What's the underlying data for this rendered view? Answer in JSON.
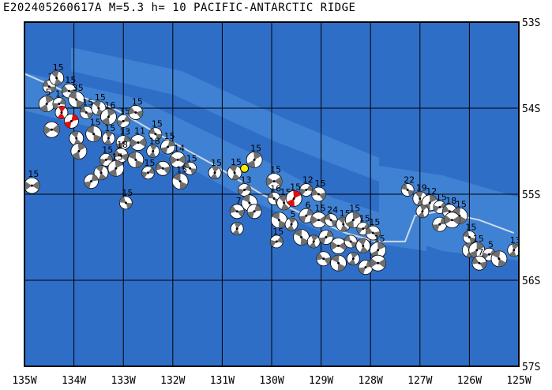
{
  "title": "E202405260617A M=5.3 h= 10 PACIFIC-ANTARCTIC RIDGE",
  "map": {
    "lon_range": [
      -135,
      -125
    ],
    "lat_range": [
      -57,
      -53
    ],
    "lon_labels": [
      "135W",
      "134W",
      "133W",
      "132W",
      "131W",
      "130W",
      "129W",
      "128W",
      "127W",
      "126W",
      "125W"
    ],
    "lat_labels": [
      "53S",
      "54S",
      "55S",
      "56S",
      "57S"
    ],
    "colors": {
      "ocean": "#2f6ec7",
      "ridge": "#3f82d4",
      "grid": "#000000",
      "plate_boundary": "#d0d8e8",
      "mechanism_fill": "#ffffff",
      "mechanism_dark": "#6f6f6f",
      "highlight_event": "#e01010",
      "epicenter": "#ffee00"
    },
    "epicenter": {
      "lon": -130.55,
      "lat": -54.7
    },
    "plate_boundary": [
      [
        -135,
        -53.6
      ],
      [
        -134.2,
        -53.8
      ],
      [
        -133.2,
        -54.0
      ],
      [
        -132.3,
        -54.3
      ],
      [
        -131.2,
        -54.65
      ],
      [
        -130.2,
        -55.0
      ],
      [
        -129.3,
        -55.25
      ],
      [
        -128.5,
        -55.45
      ],
      [
        -127.9,
        -55.55
      ],
      [
        -127.3,
        -55.55
      ],
      [
        -127.1,
        -55.25
      ],
      [
        -126.6,
        -55.2
      ],
      [
        -125.8,
        -55.3
      ],
      [
        -125.1,
        -55.45
      ]
    ],
    "events": [
      {
        "lon": -134.5,
        "lat": -53.75,
        "label": "2"
      },
      {
        "lon": -134.35,
        "lat": -53.65,
        "label": "15"
      },
      {
        "lon": -134.55,
        "lat": -53.95,
        "label": "5"
      },
      {
        "lon": -134.3,
        "lat": -53.95,
        "label": "15"
      },
      {
        "lon": -134.1,
        "lat": -53.8,
        "label": "15"
      },
      {
        "lon": -133.95,
        "lat": -53.9,
        "label": "35"
      },
      {
        "lon": -134.25,
        "lat": -54.05,
        "label": "",
        "highlight": true
      },
      {
        "lon": -134.05,
        "lat": -54.15,
        "label": "",
        "highlight": true
      },
      {
        "lon": -134.45,
        "lat": -54.25,
        "label": ""
      },
      {
        "lon": -133.75,
        "lat": -54.05,
        "label": "15"
      },
      {
        "lon": -133.5,
        "lat": -54.0,
        "label": "15"
      },
      {
        "lon": -133.3,
        "lat": -54.1,
        "label": "16"
      },
      {
        "lon": -133.0,
        "lat": -54.15,
        "label": "15"
      },
      {
        "lon": -132.75,
        "lat": -54.05,
        "label": "15"
      },
      {
        "lon": -133.6,
        "lat": -54.3,
        "label": "15"
      },
      {
        "lon": -133.3,
        "lat": -54.35,
        "label": "15"
      },
      {
        "lon": -133.0,
        "lat": -54.4,
        "label": "13"
      },
      {
        "lon": -132.7,
        "lat": -54.4,
        "label": "11"
      },
      {
        "lon": -132.35,
        "lat": -54.3,
        "label": "15"
      },
      {
        "lon": -133.95,
        "lat": -54.35,
        "label": ""
      },
      {
        "lon": -133.9,
        "lat": -54.5,
        "label": ""
      },
      {
        "lon": -133.35,
        "lat": -54.6,
        "label": "15"
      },
      {
        "lon": -133.05,
        "lat": -54.55,
        "label": "18"
      },
      {
        "lon": -132.75,
        "lat": -54.6,
        "label": ""
      },
      {
        "lon": -132.4,
        "lat": -54.5,
        "label": "18"
      },
      {
        "lon": -132.1,
        "lat": -54.45,
        "label": "15"
      },
      {
        "lon": -131.9,
        "lat": -54.6,
        "label": "14"
      },
      {
        "lon": -131.65,
        "lat": -54.7,
        "label": "15"
      },
      {
        "lon": -133.45,
        "lat": -54.75,
        "label": ""
      },
      {
        "lon": -133.15,
        "lat": -54.7,
        "label": "15"
      },
      {
        "lon": -132.5,
        "lat": -54.75,
        "label": "15"
      },
      {
        "lon": -132.2,
        "lat": -54.7,
        "label": ""
      },
      {
        "lon": -131.85,
        "lat": -54.85,
        "label": "15"
      },
      {
        "lon": -131.15,
        "lat": -54.75,
        "label": "15"
      },
      {
        "lon": -133.65,
        "lat": -54.85,
        "label": ""
      },
      {
        "lon": -134.85,
        "lat": -54.9,
        "label": "15"
      },
      {
        "lon": -132.95,
        "lat": -55.1,
        "label": "15"
      },
      {
        "lon": -130.75,
        "lat": -54.75,
        "label": "15"
      },
      {
        "lon": -130.35,
        "lat": -54.6,
        "label": "15"
      },
      {
        "lon": -130.55,
        "lat": -54.95,
        "label": "13"
      },
      {
        "lon": -130.7,
        "lat": -55.2,
        "label": "7"
      },
      {
        "lon": -130.45,
        "lat": -55.1,
        "label": ""
      },
      {
        "lon": -130.7,
        "lat": -55.4,
        "label": ""
      },
      {
        "lon": -130.35,
        "lat": -55.2,
        "label": ""
      },
      {
        "lon": -129.95,
        "lat": -54.85,
        "label": "15"
      },
      {
        "lon": -129.95,
        "lat": -55.05,
        "label": "16"
      },
      {
        "lon": -129.75,
        "lat": -55.1,
        "label": "15"
      },
      {
        "lon": -129.55,
        "lat": -55.05,
        "label": "15",
        "highlight": true
      },
      {
        "lon": -129.3,
        "lat": -54.95,
        "label": "12"
      },
      {
        "lon": -129.05,
        "lat": -55.0,
        "label": "15"
      },
      {
        "lon": -129.85,
        "lat": -55.3,
        "label": ""
      },
      {
        "lon": -129.6,
        "lat": -55.35,
        "label": "5"
      },
      {
        "lon": -129.3,
        "lat": -55.25,
        "label": "6"
      },
      {
        "lon": -129.05,
        "lat": -55.3,
        "label": "15"
      },
      {
        "lon": -128.8,
        "lat": -55.3,
        "label": "24"
      },
      {
        "lon": -128.55,
        "lat": -55.35,
        "label": "15"
      },
      {
        "lon": -128.35,
        "lat": -55.3,
        "label": "15"
      },
      {
        "lon": -128.15,
        "lat": -55.4,
        "label": "15"
      },
      {
        "lon": -127.95,
        "lat": -55.45,
        "label": "15"
      },
      {
        "lon": -129.4,
        "lat": -55.5,
        "label": ""
      },
      {
        "lon": -129.15,
        "lat": -55.55,
        "label": ""
      },
      {
        "lon": -128.9,
        "lat": -55.5,
        "label": ""
      },
      {
        "lon": -128.65,
        "lat": -55.6,
        "label": ""
      },
      {
        "lon": -128.4,
        "lat": -55.55,
        "label": ""
      },
      {
        "lon": -128.15,
        "lat": -55.6,
        "label": ""
      },
      {
        "lon": -127.85,
        "lat": -55.65,
        "label": "15"
      },
      {
        "lon": -129.9,
        "lat": -55.55,
        "label": "15"
      },
      {
        "lon": -128.95,
        "lat": -55.75,
        "label": ""
      },
      {
        "lon": -128.65,
        "lat": -55.8,
        "label": ""
      },
      {
        "lon": -128.35,
        "lat": -55.75,
        "label": ""
      },
      {
        "lon": -128.1,
        "lat": -55.85,
        "label": ""
      },
      {
        "lon": -127.85,
        "lat": -55.8,
        "label": ""
      },
      {
        "lon": -127.25,
        "lat": -54.95,
        "label": "22"
      },
      {
        "lon": -127.0,
        "lat": -55.05,
        "label": "19"
      },
      {
        "lon": -126.8,
        "lat": -55.1,
        "label": "12"
      },
      {
        "lon": -126.6,
        "lat": -55.15,
        "label": "15"
      },
      {
        "lon": -126.4,
        "lat": -55.2,
        "label": "18"
      },
      {
        "lon": -126.2,
        "lat": -55.25,
        "label": "15"
      },
      {
        "lon": -126.95,
        "lat": -55.2,
        "label": ""
      },
      {
        "lon": -126.6,
        "lat": -55.35,
        "label": ""
      },
      {
        "lon": -126.35,
        "lat": -55.3,
        "label": ""
      },
      {
        "lon": -126.0,
        "lat": -55.5,
        "label": "15"
      },
      {
        "lon": -126.0,
        "lat": -55.65,
        "label": ""
      },
      {
        "lon": -125.85,
        "lat": -55.65,
        "label": "15"
      },
      {
        "lon": -125.6,
        "lat": -55.7,
        "label": "5"
      },
      {
        "lon": -125.8,
        "lat": -55.8,
        "label": "7"
      },
      {
        "lon": -125.4,
        "lat": -55.75,
        "label": ""
      },
      {
        "lon": -125.1,
        "lat": -55.65,
        "label": "13"
      }
    ]
  }
}
